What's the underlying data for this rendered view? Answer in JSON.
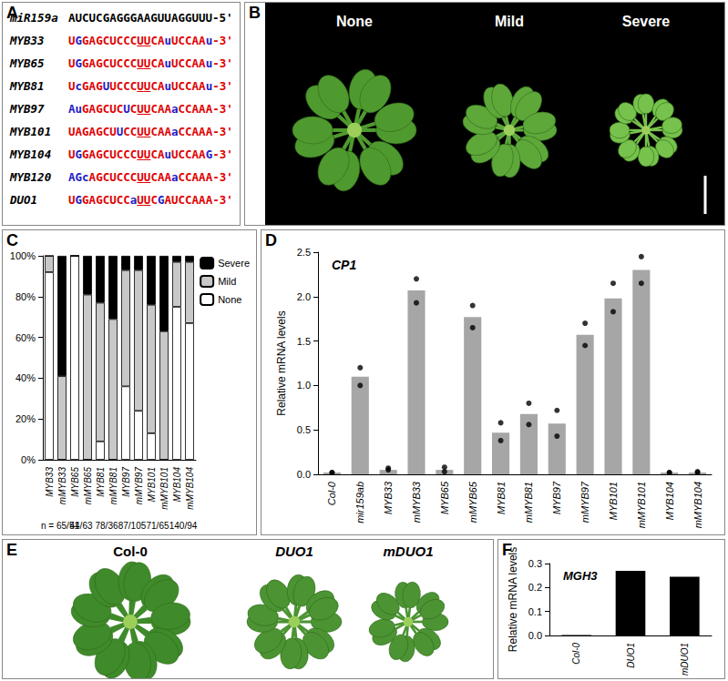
{
  "panel_labels": [
    "A",
    "B",
    "C",
    "D",
    "E",
    "F"
  ],
  "alignment": {
    "mirna": {
      "name": "miR159a",
      "sequence": "AUCUCGAGGGAAGUUAGGUUU",
      "end": "-5'"
    },
    "targets": [
      {
        "name": "MYB33",
        "sequence": "UGGAGCUCCCUUCAuUCCAAu",
        "end": "-3'"
      },
      {
        "name": "MYB65",
        "sequence": "UGGAGCUCCCUUCAuUCCAAu",
        "end": "-3'"
      },
      {
        "name": "MYB81",
        "sequence": "UcGAGUUCCCUUCAuUCCAAu",
        "end": "-3'"
      },
      {
        "name": "MYB97",
        "sequence": "AuGAGCUCUCUUCAAaCCAAA",
        "end": "-3'"
      },
      {
        "name": "MYB101",
        "sequence": "UAGAGCUUCCUUCAAaCCAAA",
        "end": "-3'"
      },
      {
        "name": "MYB104",
        "sequence": "UGGAGCUCCCUUCAuUCCAAG",
        "end": "-3'"
      },
      {
        "name": "MYB120",
        "sequence": "AGcAGCUCCCUUCAAaCCAAA",
        "end": "-3'"
      },
      {
        "name": "DUO1",
        "sequence": "UGGAGCUCCaUUCGAUCCAAA",
        "end": "-3'"
      }
    ]
  },
  "photos_B": {
    "labels": [
      "None",
      "Mild",
      "Severe"
    ]
  },
  "photos_E": {
    "labels": [
      "Col-0",
      "DUO1",
      "mDUO1"
    ]
  },
  "chart_data": [
    {
      "type": "bar",
      "stacked": true,
      "categories": [
        "MYB33",
        "mMYB33",
        "MYB65",
        "mMYB65",
        "MYB81",
        "mMYB81",
        "MYB97",
        "mMYB97",
        "MYB101",
        "mMYB101",
        "MYB104",
        "mMYB104"
      ],
      "series": [
        {
          "name": "None",
          "color": "#ffffff",
          "values": [
            92,
            0,
            100,
            0,
            9,
            0,
            36,
            24,
            13,
            0,
            75,
            67
          ]
        },
        {
          "name": "Mild",
          "color": "#c8c8c8",
          "values": [
            8,
            41,
            0,
            81,
            68,
            69,
            57,
            69,
            63,
            63,
            22,
            30
          ]
        },
        {
          "name": "Severe",
          "color": "#000000",
          "values": [
            0,
            59,
            0,
            19,
            23,
            31,
            7,
            7,
            24,
            37,
            3,
            3
          ]
        }
      ],
      "annotations": [
        "n = 65/51",
        "44/63",
        "78/36",
        "87/105",
        "71/65",
        "140/94"
      ],
      "ylim": [
        0,
        100
      ],
      "yticks": [
        {
          "value": 0,
          "label": "0%"
        },
        {
          "value": 20,
          "label": "20%"
        },
        {
          "value": 40,
          "label": "40%"
        },
        {
          "value": 60,
          "label": "60%"
        },
        {
          "value": 80,
          "label": "80%"
        },
        {
          "value": 100,
          "label": "100%"
        }
      ],
      "legend": "top right",
      "grid": false
    },
    {
      "type": "bar",
      "title": "CP1",
      "y_label": "Relative mRNA levels",
      "categories": [
        "Col-0",
        "mir159ab",
        "MYB33",
        "mMYB33",
        "MYB65",
        "mMYB65",
        "MYB81",
        "mMYB81",
        "MYB97",
        "mMYB97",
        "MYB101",
        "mMYB101",
        "MYB104",
        "mMYB104"
      ],
      "values": [
        0.02,
        1.1,
        0.05,
        2.07,
        0.05,
        1.77,
        0.47,
        0.68,
        0.57,
        1.57,
        1.98,
        2.3,
        0.02,
        0.02
      ],
      "replicates": [
        [
          0.02,
          0.02
        ],
        [
          1.0,
          1.2
        ],
        [
          0.05,
          0.07
        ],
        [
          1.93,
          2.2
        ],
        [
          0.03,
          0.08
        ],
        [
          1.65,
          1.9
        ],
        [
          0.38,
          0.58
        ],
        [
          0.56,
          0.8
        ],
        [
          0.43,
          0.72
        ],
        [
          1.45,
          1.7
        ],
        [
          1.83,
          2.15
        ],
        [
          2.15,
          2.45
        ],
        [
          0.02,
          0.02
        ],
        [
          0.02,
          0.03
        ]
      ],
      "color": "#a6a6a6",
      "ylim": [
        0,
        2.5
      ],
      "yticks": [
        {
          "value": 0,
          "label": "0.0"
        },
        0.5,
        {
          "value": 1,
          "label": "1.0"
        },
        1.5,
        {
          "value": 2,
          "label": "2.0"
        },
        2.5
      ],
      "grid": false
    },
    {
      "type": "bar",
      "title": "MGH3",
      "y_label": "Relative mRNA levels",
      "categories": [
        "Col-0",
        "DUO1",
        "mDUO1"
      ],
      "values": [
        0.001,
        0.27,
        0.245
      ],
      "color": "#000000",
      "ylim": [
        0,
        0.3
      ],
      "yticks": [
        {
          "value": 0,
          "label": "0.0"
        },
        0.1,
        0.2,
        0.3
      ],
      "grid": false
    }
  ]
}
